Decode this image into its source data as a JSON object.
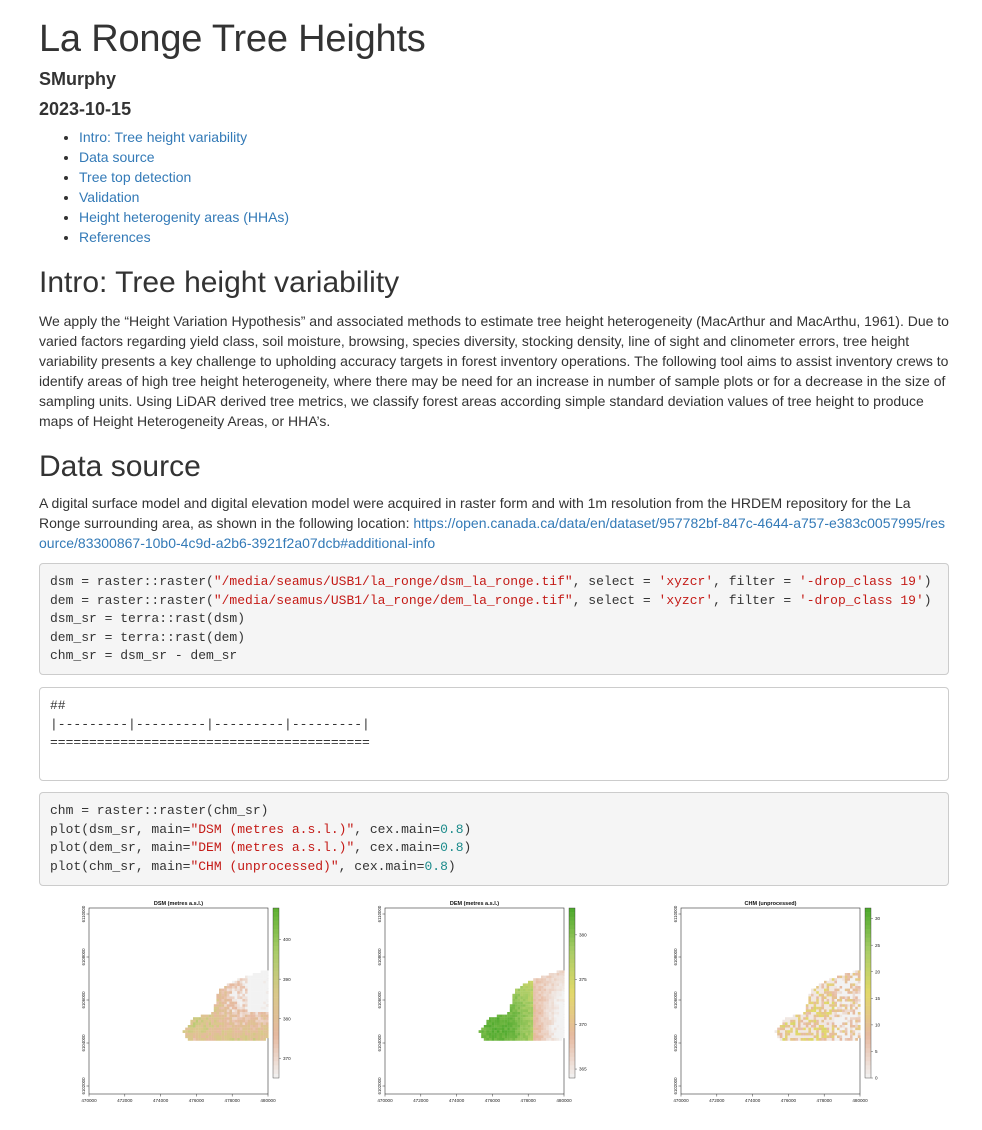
{
  "doc": {
    "title": "La Ronge Tree Heights",
    "author": "SMurphy",
    "date": "2023-10-15"
  },
  "toc": [
    "Intro: Tree height variability",
    "Data source",
    "Tree top detection",
    "Validation",
    "Height heterogenity areas (HHAs)",
    "References"
  ],
  "intro": {
    "heading": "Intro: Tree height variability",
    "paragraph": "We apply the “Height Variation Hypothesis” and associated methods to estimate tree height heterogeneity (MacArthur and MacArthu, 1961). Due to varied factors regarding yield class, soil moisture, browsing, species diversity, stocking density, line of sight and clinometer errors, tree height variability presents a key challenge to upholding accuracy targets in forest inventory operations. The following tool aims to assist inventory crews to identify areas of high tree height heterogeneity, where there may be need for an increase in number of sample plots or for a decrease in the size of sampling units. Using LiDAR derived tree metrics, we classify forest areas according simple standard deviation values of tree height to produce maps of Height Heterogeneity Areas, or HHA’s."
  },
  "data_source": {
    "heading": "Data source",
    "paragraph": "A digital surface model and digital elevation model were acquired in raster form and with 1m resolution from the HRDEM repository for the La Ronge surrounding area, as shown in the following location: ",
    "link": "https://open.canada.ca/data/en/dataset/957782bf-847c-4644-a757-e383c0057995/resource/83300867-10b0-4c9d-a2b6-3921f2a07dcb#additional-info"
  },
  "code1": [
    [
      [
        "dsm = raster::raster(",
        ""
      ],
      [
        "\"/media/seamus/USB1/la_ronge/dsm_la_ronge.tif\"",
        "str"
      ],
      [
        ", select = ",
        ""
      ],
      [
        "'xyzcr'",
        "str"
      ],
      [
        ", filter = ",
        ""
      ],
      [
        "'-drop_class 19'",
        "str"
      ],
      [
        ")",
        ""
      ]
    ],
    [
      [
        "dem = raster::raster(",
        ""
      ],
      [
        "\"/media/seamus/USB1/la_ronge/dem_la_ronge.tif\"",
        "str"
      ],
      [
        ", select = ",
        ""
      ],
      [
        "'xyzcr'",
        "str"
      ],
      [
        ", filter = ",
        ""
      ],
      [
        "'-drop_class 19'",
        "str"
      ],
      [
        ")",
        ""
      ]
    ],
    [
      [
        "dsm_sr = terra::rast(dsm)",
        ""
      ]
    ],
    [
      [
        "dem_sr = terra::rast(dem)",
        ""
      ]
    ],
    [
      [
        "chm_sr = dsm_sr - dem_sr",
        ""
      ]
    ]
  ],
  "output1": [
    "##",
    "|---------|---------|---------|---------|",
    "========================================="
  ],
  "code2": [
    [
      [
        "chm = raster::raster(chm_sr)",
        ""
      ]
    ],
    [
      [
        "plot(dsm_sr, main=",
        ""
      ],
      [
        "\"DSM (metres a.s.l.)\"",
        "str"
      ],
      [
        ", cex.main=",
        ""
      ],
      [
        "0.8",
        "num"
      ],
      [
        ")",
        ""
      ]
    ],
    [
      [
        "plot(dem_sr, main=",
        ""
      ],
      [
        "\"DEM (metres a.s.l.)\"",
        "str"
      ],
      [
        ", cex.main=",
        ""
      ],
      [
        "0.8",
        "num"
      ],
      [
        ")",
        ""
      ]
    ],
    [
      [
        "plot(chm_sr, main=",
        ""
      ],
      [
        "\"CHM (unprocessed)\"",
        "str"
      ],
      [
        ", cex.main=",
        ""
      ],
      [
        "0.8",
        "num"
      ],
      [
        ")",
        ""
      ]
    ]
  ],
  "chart_data": [
    {
      "type": "heatmap",
      "title": "DSM (metres a.s.l.)",
      "x_ticks": [
        "470000",
        "472000",
        "474000",
        "476000",
        "478000",
        "480000"
      ],
      "y_ticks": [
        "6102000",
        "6104000",
        "6106000",
        "6108000",
        "6110000"
      ],
      "legend_ticks": [
        "370",
        "380",
        "390",
        "400"
      ],
      "legend_range": [
        365,
        408
      ],
      "palette": [
        "#f2f2f2",
        "#e6b9a0",
        "#d9c98a",
        "#a8cc66",
        "#5cb030"
      ]
    },
    {
      "type": "heatmap",
      "title": "DEM (metres a.s.l.)",
      "x_ticks": [
        "470000",
        "472000",
        "474000",
        "476000",
        "478000",
        "480000"
      ],
      "y_ticks": [
        "6102000",
        "6104000",
        "6106000",
        "6108000",
        "6110000"
      ],
      "legend_ticks": [
        "365",
        "370",
        "375",
        "380"
      ],
      "legend_range": [
        364,
        383
      ],
      "palette": [
        "#f2f2f2",
        "#e6b9a0",
        "#e3d96a",
        "#a8cc66",
        "#4aa82a"
      ]
    },
    {
      "type": "heatmap",
      "title": "CHM (unprocessed)",
      "x_ticks": [
        "470000",
        "472000",
        "474000",
        "476000",
        "478000",
        "480000"
      ],
      "y_ticks": [
        "6102000",
        "6104000",
        "6106000",
        "6108000",
        "6110000"
      ],
      "legend_ticks": [
        "0",
        "5",
        "10",
        "15",
        "20",
        "25",
        "30"
      ],
      "legend_range": [
        0,
        32
      ],
      "palette": [
        "#f2f2f2",
        "#e6b9a0",
        "#e3d96a",
        "#a8cc66",
        "#4aa82a"
      ]
    }
  ]
}
